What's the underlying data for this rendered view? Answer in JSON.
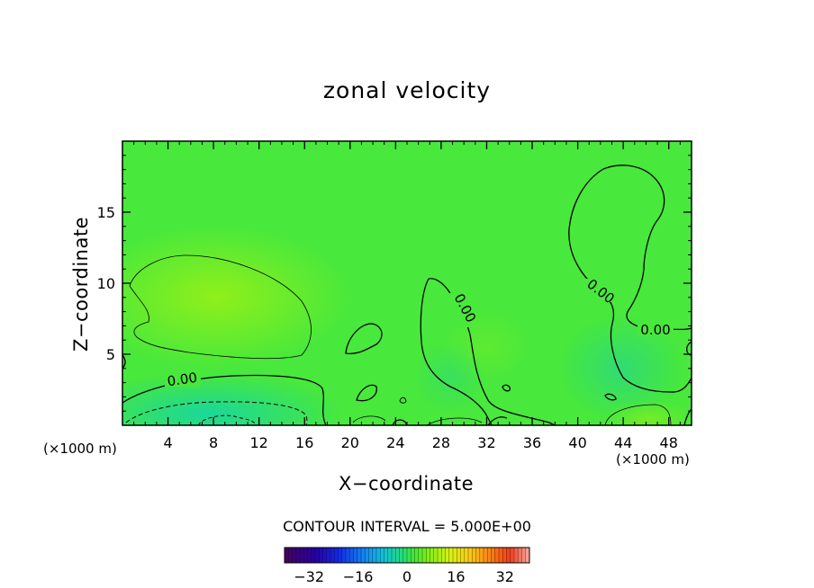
{
  "chart_data": {
    "type": "heatmap",
    "title": "zonal velocity",
    "xlabel": "X−coordinate",
    "ylabel": "Z−coordinate",
    "x_unit_label": "(×1000 m)",
    "x_ticks": [
      4,
      8,
      12,
      16,
      20,
      24,
      28,
      32,
      36,
      40,
      44,
      48
    ],
    "y_ticks": [
      5,
      10,
      15
    ],
    "xlim": [
      0,
      50
    ],
    "ylim": [
      0,
      20
    ],
    "contour_interval_text": "CONTOUR INTERVAL = 5.000E+00",
    "contour_labels": [
      "0.00",
      "0.00",
      "0.00",
      "0.00"
    ],
    "colorbar": {
      "ticks": [
        -32,
        -16,
        0,
        16,
        32
      ],
      "tick_labels": [
        "−32",
        "−16",
        "0",
        "16",
        "32"
      ],
      "range": [
        -40,
        40
      ]
    },
    "colors": {
      "field_main": "#48e83c",
      "field_positive": "#8af01e",
      "field_negative": "#20d890"
    }
  }
}
